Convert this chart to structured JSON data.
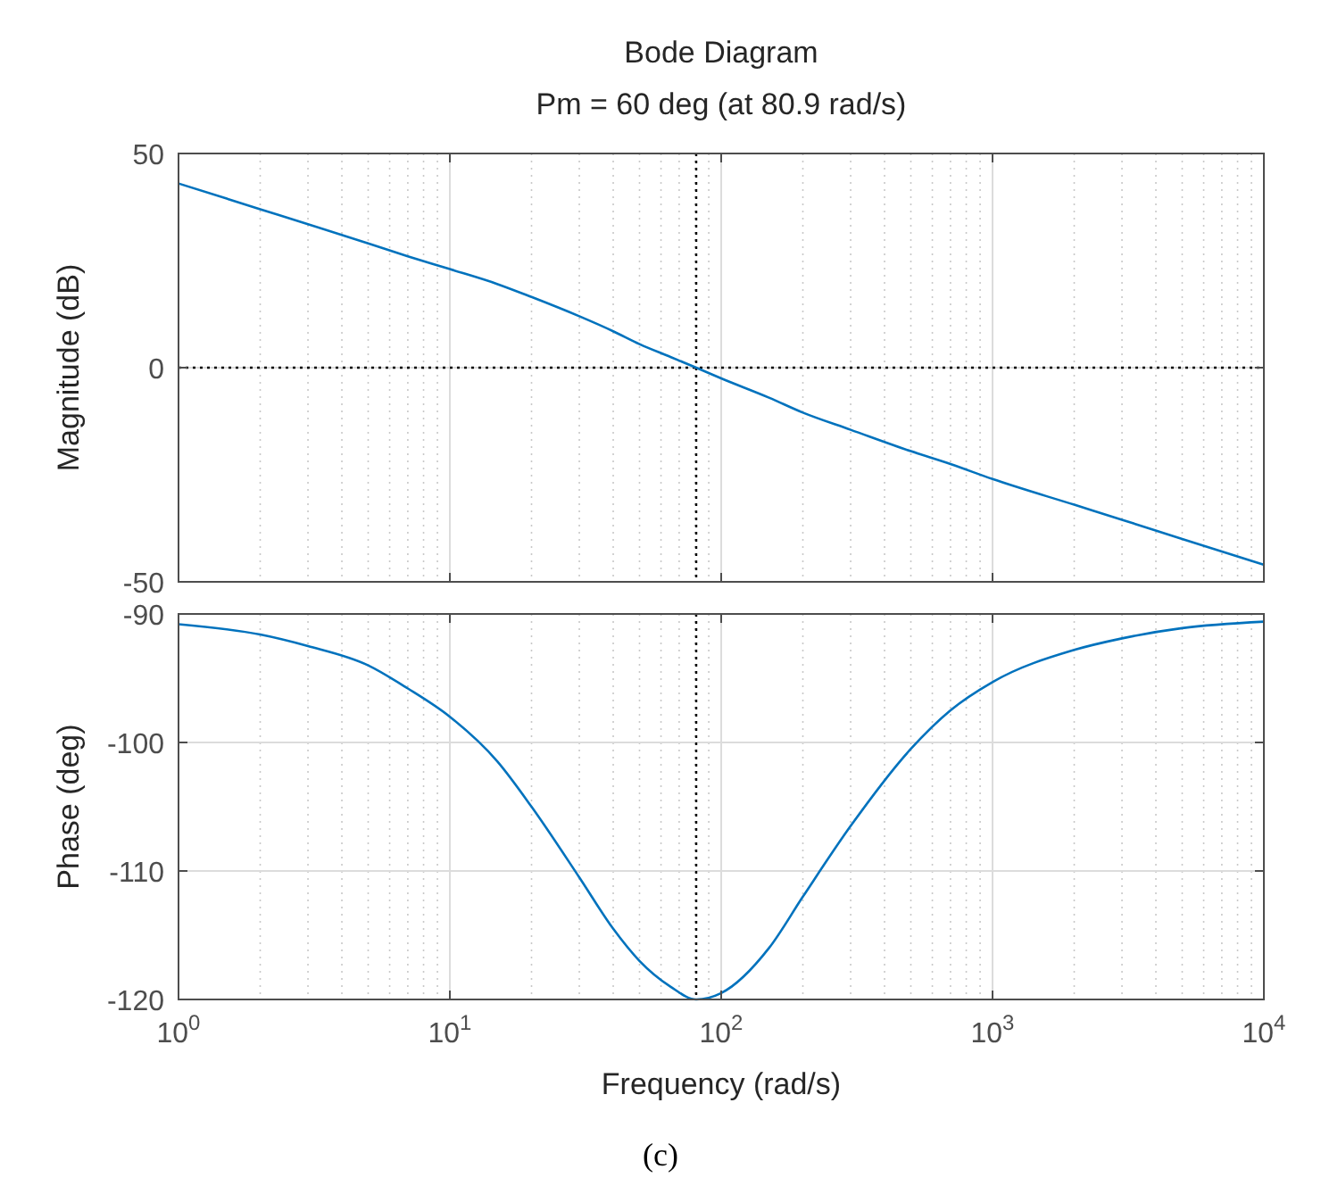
{
  "chart_data": [
    {
      "type": "line",
      "title": "Bode Diagram",
      "subtitle": "Pm = 60 deg (at 80.9 rad/s)",
      "ylabel": "Magnitude (dB)",
      "log": "x",
      "grid": true,
      "tick_labels": "y",
      "xlim": [
        1,
        10000
      ],
      "ylim": [
        -50,
        50
      ],
      "xticks": [
        {
          "value": 1,
          "label": null
        },
        {
          "value": 10,
          "label": null
        },
        {
          "value": 100,
          "label": null
        },
        {
          "value": 1000,
          "label": null
        },
        {
          "value": 10000,
          "label": null
        }
      ],
      "yticks": [
        -50,
        0,
        50
      ],
      "series": [
        {
          "color": "#0072bd",
          "x": [
            1,
            2,
            3,
            5,
            7,
            10,
            15,
            20,
            30,
            40,
            50,
            65,
            80.9,
            100,
            150,
            200,
            300,
            500,
            700,
            1000,
            2000,
            3000,
            5000,
            10000
          ],
          "values": [
            43,
            37,
            33.5,
            29,
            26,
            23,
            19.5,
            16.5,
            12,
            8.5,
            5.5,
            2.5,
            0,
            -2.5,
            -7,
            -10.5,
            -14.5,
            -19.5,
            -22.5,
            -26,
            -32,
            -35.5,
            -40,
            -46
          ]
        }
      ],
      "ref_lines": [
        {
          "axis": "y",
          "value": 0,
          "color": "#000000",
          "line_style": "dotted"
        },
        {
          "axis": "x",
          "value": 80.9,
          "color": "#000000",
          "line_style": "dotted"
        }
      ]
    },
    {
      "type": "line",
      "xlabel": "Frequency  (rad/s)",
      "ylabel": "Phase (deg)",
      "log": "x",
      "grid": true,
      "xlim": [
        1,
        10000
      ],
      "ylim": [
        -120,
        -90
      ],
      "xticks": [
        {
          "value": 1,
          "label": "10$^{0}$"
        },
        {
          "value": 10,
          "label": "10$^{1}$"
        },
        {
          "value": 100,
          "label": "10$^{2}$"
        },
        {
          "value": 1000,
          "label": "10$^{3}$"
        },
        {
          "value": 10000,
          "label": "10$^{4}$"
        }
      ],
      "yticks": [
        -120,
        -110,
        -100,
        -90
      ],
      "series": [
        {
          "color": "#0072bd",
          "x": [
            1,
            2,
            3,
            5,
            7,
            10,
            15,
            20,
            30,
            40,
            50,
            65,
            80.9,
            100,
            150,
            200,
            300,
            500,
            700,
            1000,
            2000,
            3000,
            5000,
            10000
          ],
          "values": [
            -90.8,
            -91.6,
            -92.5,
            -94,
            -95.8,
            -98,
            -101.5,
            -105,
            -110.5,
            -114.5,
            -117,
            -119,
            -120,
            -119.5,
            -116,
            -112,
            -106.5,
            -100.5,
            -97.5,
            -95.3,
            -92.8,
            -91.9,
            -91.1,
            -90.6
          ]
        }
      ],
      "ref_lines": [
        {
          "axis": "x",
          "value": 80.9,
          "color": "#000000",
          "line_style": "dotted"
        }
      ],
      "annotations": [
        "(c)"
      ]
    }
  ]
}
